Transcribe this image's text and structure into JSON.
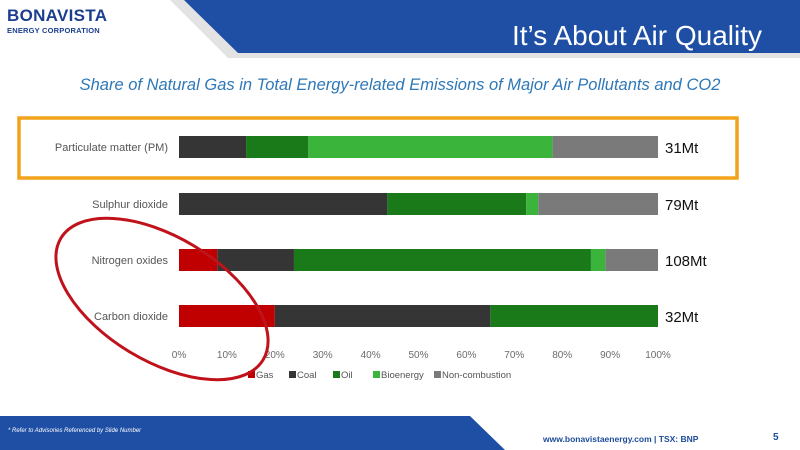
{
  "logo": {
    "top": "BONAVISTA",
    "bottom": "ENERGY CORPORATION"
  },
  "header": {
    "title": "It’s About Air Quality"
  },
  "footer": {
    "advisory": "* Refer to Advisories Referenced by Slide Number",
    "site": "www.bonavistaenergy.com",
    "separator": " |  ",
    "ticker": "TSX: BNP",
    "page": "5"
  },
  "colors": {
    "header_blue": "#1f4fa5",
    "highlight_orange": "#f2a31b",
    "circle_red": "#c0121a"
  },
  "chart_data": {
    "type": "bar",
    "orientation": "horizontal",
    "stacked": true,
    "title": "Share of Natural Gas in Total Energy-related Emissions of Major Air Pollutants and CO2",
    "categories": [
      "Particulate matter (PM)",
      "Sulphur dioxide",
      "Nitrogen oxides",
      "Carbon dioxide"
    ],
    "totals": [
      "31Mt",
      "79Mt",
      "108Mt",
      "32Mt"
    ],
    "series": [
      {
        "name": "Gas",
        "color": "#c00000",
        "values": [
          0,
          0,
          8,
          20
        ]
      },
      {
        "name": "Coal",
        "color": "#353535",
        "values": [
          14,
          43.5,
          16,
          45
        ]
      },
      {
        "name": "Oil",
        "color": "#1a7a1a",
        "values": [
          13,
          29,
          62,
          35
        ]
      },
      {
        "name": "Bioenergy",
        "color": "#3bb43b",
        "values": [
          51,
          2.5,
          3,
          0
        ]
      },
      {
        "name": "Non-combustion",
        "color": "#7a7a7a",
        "values": [
          22,
          25,
          11,
          0
        ]
      }
    ],
    "xlim": [
      0,
      100
    ],
    "xticks": [
      "0%",
      "10%",
      "20%",
      "30%",
      "40%",
      "50%",
      "60%",
      "70%",
      "80%",
      "90%",
      "100%"
    ],
    "legend": "bottom",
    "grid": false
  }
}
